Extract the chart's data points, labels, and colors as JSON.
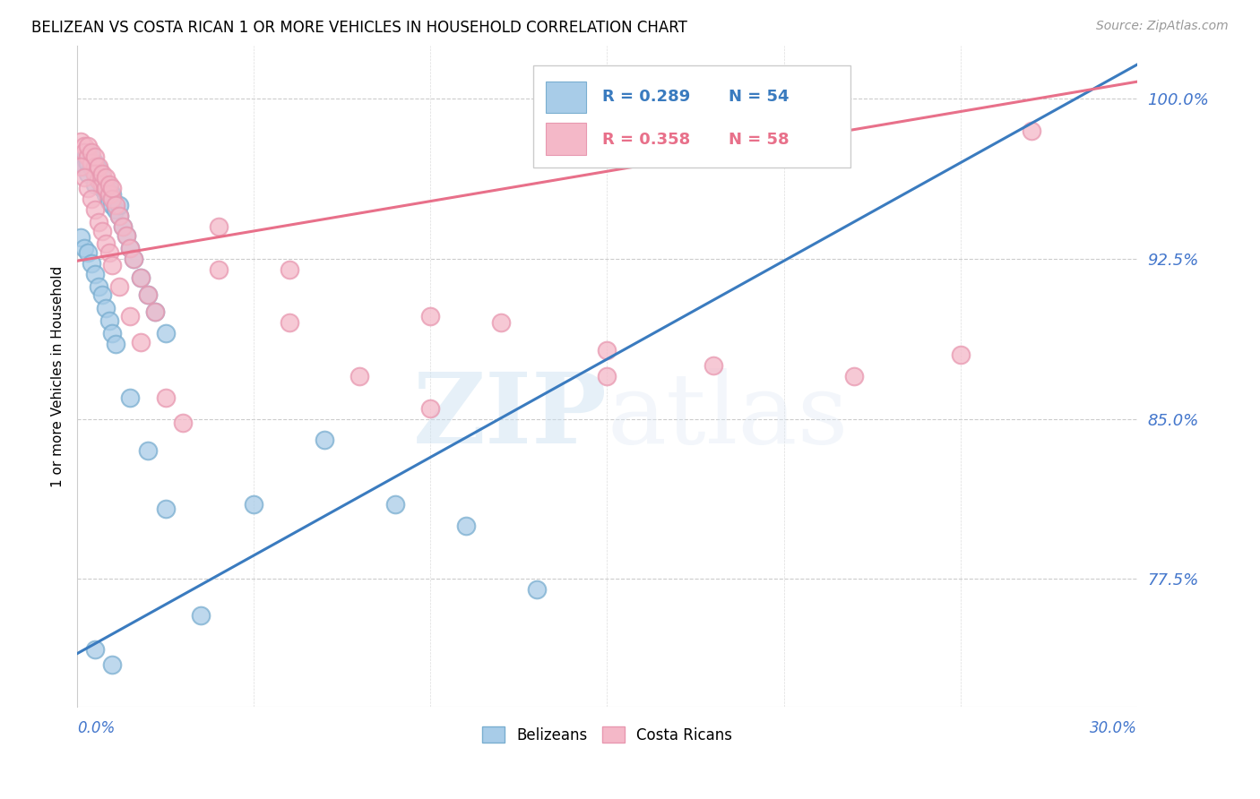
{
  "title": "BELIZEAN VS COSTA RICAN 1 OR MORE VEHICLES IN HOUSEHOLD CORRELATION CHART",
  "source": "Source: ZipAtlas.com",
  "ylabel": "1 or more Vehicles in Household",
  "ytick_labels": [
    "77.5%",
    "85.0%",
    "92.5%",
    "100.0%"
  ],
  "ytick_values": [
    0.775,
    0.85,
    0.925,
    1.0
  ],
  "xmin": 0.0,
  "xmax": 0.3,
  "ymin": 0.715,
  "ymax": 1.025,
  "blue_color": "#a8cce8",
  "pink_color": "#f4b8c8",
  "blue_line_color": "#3a7bbf",
  "pink_line_color": "#e8708a",
  "blue_edge_color": "#7aaed0",
  "pink_edge_color": "#e898b0",
  "tick_color": "#4477cc",
  "watermark_zip": "ZIP",
  "watermark_atlas": "atlas",
  "legend_label_blue": "Belizeans",
  "legend_label_pink": "Costa Ricans",
  "blue_slope": 0.92,
  "blue_intercept": 0.74,
  "pink_slope": 0.28,
  "pink_intercept": 0.924,
  "blue_x": [
    0.001,
    0.002,
    0.002,
    0.003,
    0.003,
    0.003,
    0.004,
    0.004,
    0.005,
    0.005,
    0.005,
    0.006,
    0.006,
    0.007,
    0.007,
    0.008,
    0.008,
    0.009,
    0.009,
    0.01,
    0.01,
    0.011,
    0.012,
    0.012,
    0.013,
    0.014,
    0.015,
    0.016,
    0.018,
    0.02,
    0.022,
    0.025,
    0.001,
    0.002,
    0.003,
    0.004,
    0.005,
    0.006,
    0.007,
    0.008,
    0.009,
    0.01,
    0.011,
    0.015,
    0.02,
    0.025,
    0.035,
    0.05,
    0.07,
    0.09,
    0.11,
    0.13,
    0.005,
    0.01
  ],
  "blue_y": [
    0.97,
    0.972,
    0.968,
    0.965,
    0.97,
    0.975,
    0.968,
    0.973,
    0.965,
    0.97,
    0.96,
    0.962,
    0.967,
    0.963,
    0.958,
    0.955,
    0.96,
    0.952,
    0.958,
    0.95,
    0.955,
    0.948,
    0.945,
    0.95,
    0.94,
    0.936,
    0.93,
    0.925,
    0.916,
    0.908,
    0.9,
    0.89,
    0.935,
    0.93,
    0.928,
    0.923,
    0.918,
    0.912,
    0.908,
    0.902,
    0.896,
    0.89,
    0.885,
    0.86,
    0.835,
    0.808,
    0.758,
    0.81,
    0.84,
    0.81,
    0.8,
    0.77,
    0.742,
    0.735
  ],
  "pink_x": [
    0.001,
    0.002,
    0.002,
    0.003,
    0.003,
    0.004,
    0.004,
    0.005,
    0.005,
    0.005,
    0.006,
    0.006,
    0.007,
    0.007,
    0.008,
    0.008,
    0.009,
    0.009,
    0.01,
    0.01,
    0.011,
    0.012,
    0.013,
    0.014,
    0.015,
    0.016,
    0.018,
    0.02,
    0.022,
    0.001,
    0.002,
    0.003,
    0.004,
    0.005,
    0.006,
    0.007,
    0.008,
    0.009,
    0.01,
    0.012,
    0.015,
    0.018,
    0.025,
    0.03,
    0.04,
    0.06,
    0.08,
    0.1,
    0.12,
    0.15,
    0.18,
    0.22,
    0.27,
    0.04,
    0.06,
    0.1,
    0.15,
    0.25
  ],
  "pink_y": [
    0.98,
    0.978,
    0.975,
    0.973,
    0.978,
    0.97,
    0.975,
    0.968,
    0.973,
    0.965,
    0.962,
    0.968,
    0.96,
    0.965,
    0.958,
    0.963,
    0.955,
    0.96,
    0.953,
    0.958,
    0.95,
    0.945,
    0.94,
    0.936,
    0.93,
    0.925,
    0.916,
    0.908,
    0.9,
    0.968,
    0.963,
    0.958,
    0.953,
    0.948,
    0.942,
    0.938,
    0.932,
    0.928,
    0.922,
    0.912,
    0.898,
    0.886,
    0.86,
    0.848,
    0.92,
    0.895,
    0.87,
    0.855,
    0.895,
    0.87,
    0.875,
    0.87,
    0.985,
    0.94,
    0.92,
    0.898,
    0.882,
    0.88
  ]
}
